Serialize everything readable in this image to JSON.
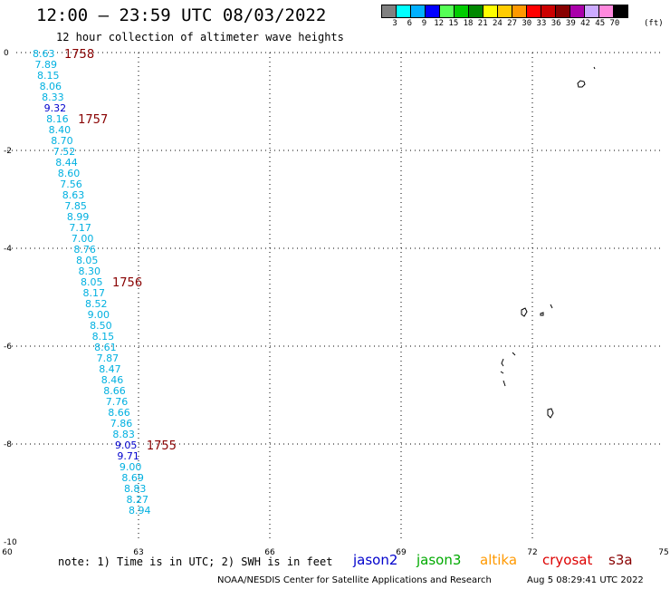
{
  "header": {
    "title": "12:00 — 23:59 UTC 08/03/2022",
    "subtitle": "12 hour collection of altimeter wave heights"
  },
  "scale": {
    "colors": [
      "#808080",
      "#00ffff",
      "#00b0ff",
      "#0000ff",
      "#55ff55",
      "#00cc00",
      "#008800",
      "#ffff00",
      "#ffcc00",
      "#ff9900",
      "#ff0000",
      "#cc0000",
      "#880000",
      "#aa00aa",
      "#ccaaff",
      "#ff88dd",
      "#000000"
    ],
    "labels": [
      "3",
      "6",
      "9",
      "12",
      "15",
      "18",
      "21",
      "24",
      "27",
      "30",
      "33",
      "36",
      "39",
      "42",
      "45",
      "70"
    ],
    "unit": "(ft)"
  },
  "map": {
    "lon_ticks": [
      "60",
      "63",
      "66",
      "69",
      "72",
      "75"
    ],
    "lat_ticks": [
      "0",
      "-2",
      "-4",
      "-6",
      "-8",
      "-10"
    ]
  },
  "track": {
    "color_light": "#00b0e0",
    "color_dark": "#0000cc",
    "time_color": "#880000",
    "readings": [
      {
        "v": "8.63",
        "c": "light"
      },
      {
        "v": "7.89",
        "c": "light"
      },
      {
        "v": "8.15",
        "c": "light"
      },
      {
        "v": "8.06",
        "c": "light"
      },
      {
        "v": "8.33",
        "c": "light"
      },
      {
        "v": "9.32",
        "c": "dark"
      },
      {
        "v": "8.16",
        "c": "light"
      },
      {
        "v": "8.40",
        "c": "light"
      },
      {
        "v": "8.70",
        "c": "light"
      },
      {
        "v": "7.52",
        "c": "light"
      },
      {
        "v": "8.44",
        "c": "light"
      },
      {
        "v": "8.60",
        "c": "light"
      },
      {
        "v": "7.56",
        "c": "light"
      },
      {
        "v": "8.63",
        "c": "light"
      },
      {
        "v": "7.85",
        "c": "light"
      },
      {
        "v": "8.99",
        "c": "light"
      },
      {
        "v": "7.17",
        "c": "light"
      },
      {
        "v": "7.00",
        "c": "light"
      },
      {
        "v": "8.76",
        "c": "light"
      },
      {
        "v": "8.05",
        "c": "light"
      },
      {
        "v": "8.30",
        "c": "light"
      },
      {
        "v": "8.05",
        "c": "light"
      },
      {
        "v": "8.17",
        "c": "light"
      },
      {
        "v": "8.52",
        "c": "light"
      },
      {
        "v": "9.00",
        "c": "light"
      },
      {
        "v": "8.50",
        "c": "light"
      },
      {
        "v": "8.15",
        "c": "light"
      },
      {
        "v": "8.61",
        "c": "light"
      },
      {
        "v": "7.87",
        "c": "light"
      },
      {
        "v": "8.47",
        "c": "light"
      },
      {
        "v": "8.46",
        "c": "light"
      },
      {
        "v": "8.66",
        "c": "light"
      },
      {
        "v": "7.76",
        "c": "light"
      },
      {
        "v": "8.66",
        "c": "light"
      },
      {
        "v": "7.86",
        "c": "light"
      },
      {
        "v": "8.83",
        "c": "light"
      },
      {
        "v": "9.05",
        "c": "dark"
      },
      {
        "v": "9.71",
        "c": "dark"
      },
      {
        "v": "9.00",
        "c": "light"
      },
      {
        "v": "8.69",
        "c": "light"
      },
      {
        "v": "8.83",
        "c": "light"
      },
      {
        "v": "8.27",
        "c": "light"
      },
      {
        "v": "8.94",
        "c": "light"
      }
    ],
    "times": [
      {
        "label": "1758",
        "at": 0
      },
      {
        "label": "1757",
        "at": 6
      },
      {
        "label": "1756",
        "at": 21
      },
      {
        "label": "1755",
        "at": 36
      }
    ]
  },
  "footer": {
    "note": "note:  1) Time is in UTC;  2) SWH is in feet",
    "satellites": [
      {
        "name": "jason2",
        "color": "#0000cc"
      },
      {
        "name": "jason3",
        "color": "#00aa00"
      },
      {
        "name": "altika",
        "color": "#ff9900"
      },
      {
        "name": "cryosat",
        "color": "#dd0000"
      },
      {
        "name": "s3a",
        "color": "#880000"
      }
    ],
    "credit": "NOAA/NESDIS Center for Satellite Applications and Research",
    "timestamp": "Aug  5 08:29:41 UTC 2022"
  }
}
